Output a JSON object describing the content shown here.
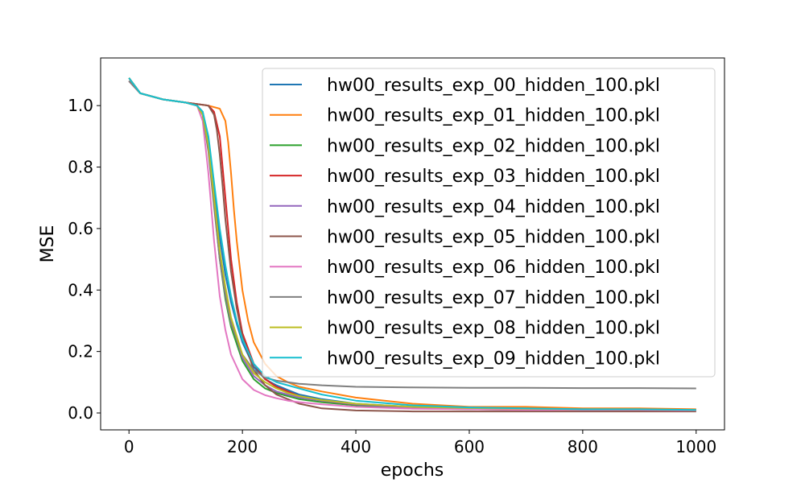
{
  "chart_data": {
    "type": "line",
    "title": "",
    "xlabel": "epochs",
    "ylabel": "MSE",
    "xlim": [
      -50,
      1050
    ],
    "ylim": [
      -0.055,
      1.155
    ],
    "xticks": [
      0,
      200,
      400,
      600,
      800,
      1000
    ],
    "yticks": [
      0.0,
      0.2,
      0.4,
      0.6,
      0.8,
      1.0
    ],
    "xtick_labels": [
      "0",
      "200",
      "400",
      "600",
      "800",
      "1000"
    ],
    "ytick_labels": [
      "0.0",
      "0.2",
      "0.4",
      "0.6",
      "0.8",
      "1.0"
    ],
    "legend_position": "upper-right",
    "grid": false,
    "series": [
      {
        "name": "hw00_results_exp_00_hidden_100.pkl",
        "color": "#1f77b4",
        "x": [
          0,
          20,
          60,
          100,
          120,
          130,
          140,
          150,
          160,
          170,
          180,
          190,
          200,
          220,
          240,
          260,
          280,
          300,
          340,
          400,
          500,
          600,
          700,
          800,
          900,
          1000
        ],
        "y": [
          1.09,
          1.04,
          1.02,
          1.01,
          1.0,
          0.98,
          0.88,
          0.72,
          0.57,
          0.45,
          0.36,
          0.29,
          0.23,
          0.15,
          0.11,
          0.09,
          0.075,
          0.06,
          0.045,
          0.03,
          0.02,
          0.015,
          0.015,
          0.012,
          0.012,
          0.01
        ]
      },
      {
        "name": "hw00_results_exp_01_hidden_100.pkl",
        "color": "#ff7f0e",
        "x": [
          0,
          20,
          60,
          100,
          140,
          160,
          170,
          175,
          180,
          185,
          190,
          200,
          210,
          220,
          240,
          260,
          280,
          300,
          340,
          400,
          500,
          600,
          700,
          800,
          900,
          1000
        ],
        "y": [
          1.08,
          1.04,
          1.02,
          1.01,
          1.0,
          0.99,
          0.95,
          0.88,
          0.78,
          0.66,
          0.56,
          0.4,
          0.3,
          0.23,
          0.16,
          0.12,
          0.1,
          0.085,
          0.07,
          0.05,
          0.03,
          0.02,
          0.02,
          0.015,
          0.015,
          0.012
        ]
      },
      {
        "name": "hw00_results_exp_02_hidden_100.pkl",
        "color": "#2ca02c",
        "x": [
          0,
          20,
          60,
          100,
          120,
          130,
          140,
          150,
          160,
          170,
          180,
          200,
          220,
          240,
          260,
          280,
          300,
          340,
          400,
          500,
          600,
          700,
          800,
          900,
          1000
        ],
        "y": [
          1.09,
          1.04,
          1.02,
          1.01,
          1.0,
          0.97,
          0.86,
          0.68,
          0.5,
          0.37,
          0.28,
          0.17,
          0.11,
          0.08,
          0.065,
          0.055,
          0.045,
          0.035,
          0.025,
          0.015,
          0.012,
          0.01,
          0.01,
          0.01,
          0.008
        ]
      },
      {
        "name": "hw00_results_exp_03_hidden_100.pkl",
        "color": "#d62728",
        "x": [
          0,
          20,
          60,
          100,
          140,
          150,
          160,
          165,
          170,
          175,
          180,
          190,
          200,
          220,
          240,
          260,
          280,
          300,
          340,
          400,
          500,
          600,
          700,
          800,
          900,
          1000
        ],
        "y": [
          1.09,
          1.04,
          1.02,
          1.01,
          1.0,
          0.98,
          0.9,
          0.8,
          0.7,
          0.6,
          0.5,
          0.36,
          0.26,
          0.16,
          0.11,
          0.085,
          0.07,
          0.055,
          0.04,
          0.028,
          0.018,
          0.015,
          0.012,
          0.012,
          0.01,
          0.01
        ]
      },
      {
        "name": "hw00_results_exp_04_hidden_100.pkl",
        "color": "#9467bd",
        "x": [
          0,
          20,
          60,
          100,
          120,
          130,
          140,
          150,
          160,
          170,
          180,
          200,
          220,
          240,
          260,
          280,
          300,
          340,
          400,
          500,
          600,
          700,
          800,
          900,
          1000
        ],
        "y": [
          1.08,
          1.04,
          1.02,
          1.01,
          1.0,
          0.97,
          0.86,
          0.68,
          0.52,
          0.39,
          0.3,
          0.18,
          0.12,
          0.09,
          0.07,
          0.06,
          0.05,
          0.04,
          0.028,
          0.018,
          0.014,
          0.012,
          0.01,
          0.01,
          0.008
        ]
      },
      {
        "name": "hw00_results_exp_05_hidden_100.pkl",
        "color": "#8c564b",
        "x": [
          0,
          20,
          60,
          100,
          140,
          150,
          155,
          160,
          165,
          170,
          180,
          190,
          200,
          220,
          240,
          260,
          280,
          300,
          340,
          400,
          500,
          600,
          700,
          800,
          900,
          1000
        ],
        "y": [
          1.08,
          1.04,
          1.02,
          1.01,
          1.0,
          0.97,
          0.92,
          0.84,
          0.74,
          0.63,
          0.46,
          0.34,
          0.25,
          0.14,
          0.09,
          0.06,
          0.045,
          0.03,
          0.015,
          0.008,
          0.005,
          0.005,
          0.005,
          0.005,
          0.005,
          0.005
        ]
      },
      {
        "name": "hw00_results_exp_06_hidden_100.pkl",
        "color": "#e377c2",
        "x": [
          0,
          20,
          60,
          100,
          120,
          130,
          140,
          150,
          160,
          170,
          180,
          200,
          220,
          240,
          260,
          280,
          300,
          340,
          400,
          500,
          600,
          700,
          800,
          900,
          1000
        ],
        "y": [
          1.08,
          1.04,
          1.02,
          1.01,
          1.0,
          0.95,
          0.78,
          0.56,
          0.38,
          0.27,
          0.19,
          0.11,
          0.075,
          0.058,
          0.048,
          0.04,
          0.035,
          0.028,
          0.02,
          0.014,
          0.012,
          0.01,
          0.01,
          0.01,
          0.008
        ]
      },
      {
        "name": "hw00_results_exp_07_hidden_100.pkl",
        "color": "#7f7f7f",
        "x": [
          0,
          20,
          60,
          100,
          120,
          130,
          140,
          150,
          160,
          170,
          180,
          200,
          220,
          240,
          260,
          280,
          300,
          340,
          400,
          500,
          600,
          700,
          800,
          900,
          1000
        ],
        "y": [
          1.08,
          1.04,
          1.02,
          1.01,
          1.0,
          0.97,
          0.85,
          0.67,
          0.5,
          0.38,
          0.29,
          0.19,
          0.14,
          0.115,
          0.105,
          0.1,
          0.095,
          0.09,
          0.085,
          0.083,
          0.082,
          0.082,
          0.081,
          0.081,
          0.08
        ]
      },
      {
        "name": "hw00_results_exp_08_hidden_100.pkl",
        "color": "#bcbd22",
        "x": [
          0,
          20,
          60,
          100,
          120,
          130,
          140,
          150,
          160,
          170,
          180,
          200,
          220,
          240,
          260,
          280,
          300,
          340,
          400,
          500,
          600,
          700,
          800,
          900,
          1000
        ],
        "y": [
          1.09,
          1.04,
          1.02,
          1.01,
          1.0,
          0.97,
          0.87,
          0.7,
          0.53,
          0.41,
          0.31,
          0.19,
          0.13,
          0.1,
          0.08,
          0.065,
          0.055,
          0.042,
          0.03,
          0.02,
          0.016,
          0.014,
          0.012,
          0.012,
          0.01
        ]
      },
      {
        "name": "hw00_results_exp_09_hidden_100.pkl",
        "color": "#17becf",
        "x": [
          0,
          20,
          60,
          100,
          120,
          130,
          140,
          150,
          160,
          170,
          180,
          190,
          200,
          220,
          240,
          260,
          280,
          300,
          340,
          400,
          500,
          600,
          700,
          800,
          900,
          1000
        ],
        "y": [
          1.09,
          1.04,
          1.02,
          1.01,
          1.0,
          0.98,
          0.9,
          0.75,
          0.6,
          0.48,
          0.38,
          0.3,
          0.24,
          0.16,
          0.12,
          0.1,
          0.09,
          0.08,
          0.06,
          0.04,
          0.025,
          0.018,
          0.015,
          0.012,
          0.012,
          0.01
        ]
      }
    ]
  }
}
